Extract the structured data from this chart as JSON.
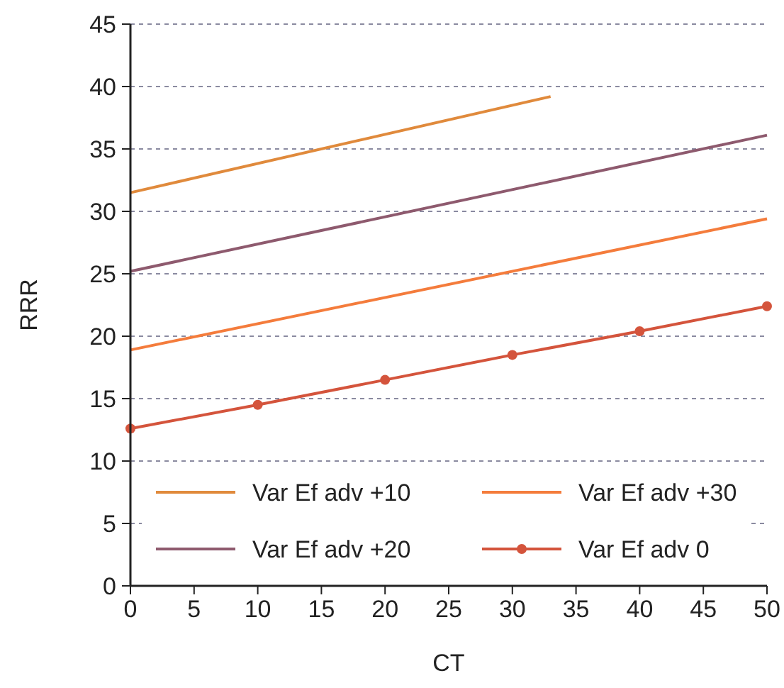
{
  "chart_data": {
    "type": "line",
    "xlabel": "CT",
    "ylabel": "RRR",
    "xlim": [
      0,
      50
    ],
    "ylim": [
      0,
      45
    ],
    "xticks": [
      0,
      5,
      10,
      15,
      20,
      25,
      30,
      35,
      40,
      45,
      50
    ],
    "yticks": [
      0,
      5,
      10,
      15,
      20,
      25,
      30,
      35,
      40,
      45
    ],
    "grid": "y",
    "legend": "bottom",
    "series": [
      {
        "name": "Var Ef adv +10",
        "color": "#e08a3c",
        "x": [
          0,
          33
        ],
        "values": [
          31.5,
          39.2
        ],
        "marker": "none"
      },
      {
        "name": "Var Ef adv +30",
        "color": "#f47c3c",
        "x": [
          0,
          50
        ],
        "values": [
          18.9,
          29.4
        ],
        "marker": "none"
      },
      {
        "name": "Var Ef adv +20",
        "color": "#8e5a6e",
        "x": [
          0,
          50
        ],
        "values": [
          25.2,
          36.1
        ],
        "marker": "none"
      },
      {
        "name": "Var Ef adv 0",
        "color": "#d4543c",
        "x": [
          0,
          10,
          20,
          30,
          40,
          50
        ],
        "values": [
          12.6,
          14.5,
          16.5,
          18.5,
          20.4,
          22.4
        ],
        "marker": "circle"
      }
    ]
  }
}
